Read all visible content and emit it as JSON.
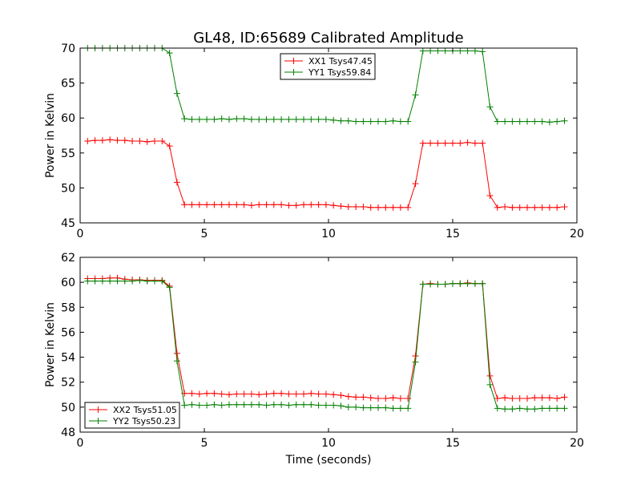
{
  "figure": {
    "title": "GL48, ID:65689 Calibrated Amplitude",
    "xlabel": "Time (seconds)"
  },
  "chart_data": [
    {
      "type": "line",
      "title": "GL48, ID:65689 Calibrated Amplitude",
      "xlabel": "",
      "ylabel": "Power in Kelvin",
      "xlim": [
        0,
        20
      ],
      "ylim": [
        45,
        70
      ],
      "xticks": [
        0,
        5,
        10,
        15,
        20
      ],
      "yticks": [
        45,
        50,
        55,
        60,
        65,
        70
      ],
      "grid": false,
      "legend_position": "upper-center",
      "x": [
        0.3,
        0.6,
        0.9,
        1.2,
        1.5,
        1.8,
        2.1,
        2.4,
        2.7,
        3.0,
        3.3,
        3.6,
        3.9,
        4.2,
        4.5,
        4.8,
        5.1,
        5.4,
        5.7,
        6.0,
        6.3,
        6.6,
        6.9,
        7.2,
        7.5,
        7.8,
        8.1,
        8.4,
        8.7,
        9.0,
        9.3,
        9.6,
        9.9,
        10.2,
        10.5,
        10.8,
        11.1,
        11.4,
        11.7,
        12.0,
        12.3,
        12.6,
        12.9,
        13.2,
        13.5,
        13.8,
        14.1,
        14.4,
        14.7,
        15.0,
        15.3,
        15.6,
        15.9,
        16.2,
        16.5,
        16.8,
        17.1,
        17.4,
        17.7,
        18.0,
        18.3,
        18.6,
        18.9,
        19.2,
        19.5
      ],
      "series": [
        {
          "name": "XX1 Tsys47.45",
          "color": "#ff0000",
          "values": [
            56.7,
            56.8,
            56.8,
            56.9,
            56.8,
            56.8,
            56.7,
            56.7,
            56.6,
            56.7,
            56.7,
            56.0,
            50.8,
            47.6,
            47.6,
            47.6,
            47.6,
            47.6,
            47.6,
            47.6,
            47.6,
            47.6,
            47.5,
            47.6,
            47.6,
            47.6,
            47.6,
            47.5,
            47.5,
            47.6,
            47.6,
            47.6,
            47.6,
            47.5,
            47.4,
            47.3,
            47.3,
            47.3,
            47.2,
            47.2,
            47.2,
            47.2,
            47.2,
            47.2,
            50.6,
            56.4,
            56.4,
            56.4,
            56.4,
            56.4,
            56.4,
            56.5,
            56.4,
            56.4,
            48.9,
            47.2,
            47.3,
            47.2,
            47.2,
            47.2,
            47.2,
            47.2,
            47.2,
            47.2,
            47.3
          ]
        },
        {
          "name": "YY1 Tsys59.84",
          "color": "#008000",
          "values": [
            70.0,
            70.0,
            70.0,
            70.0,
            70.0,
            70.0,
            70.0,
            70.0,
            70.0,
            70.0,
            70.0,
            69.3,
            63.5,
            59.9,
            59.8,
            59.8,
            59.8,
            59.8,
            59.9,
            59.8,
            59.9,
            59.9,
            59.8,
            59.8,
            59.8,
            59.8,
            59.8,
            59.8,
            59.8,
            59.8,
            59.8,
            59.8,
            59.8,
            59.7,
            59.6,
            59.6,
            59.5,
            59.5,
            59.5,
            59.5,
            59.5,
            59.6,
            59.5,
            59.5,
            63.3,
            69.6,
            69.6,
            69.6,
            69.6,
            69.6,
            69.6,
            69.6,
            69.6,
            69.5,
            61.6,
            59.5,
            59.5,
            59.5,
            59.5,
            59.5,
            59.5,
            59.5,
            59.4,
            59.5,
            59.6
          ]
        }
      ]
    },
    {
      "type": "line",
      "title": "",
      "xlabel": "Time (seconds)",
      "ylabel": "Power in Kelvin",
      "xlim": [
        0,
        20
      ],
      "ylim": [
        48,
        62
      ],
      "xticks": [
        0,
        5,
        10,
        15,
        20
      ],
      "yticks": [
        48,
        50,
        52,
        54,
        56,
        58,
        60,
        62
      ],
      "grid": false,
      "legend_position": "lower-left",
      "x": [
        0.3,
        0.6,
        0.9,
        1.2,
        1.5,
        1.8,
        2.1,
        2.4,
        2.7,
        3.0,
        3.3,
        3.6,
        3.9,
        4.2,
        4.5,
        4.8,
        5.1,
        5.4,
        5.7,
        6.0,
        6.3,
        6.6,
        6.9,
        7.2,
        7.5,
        7.8,
        8.1,
        8.4,
        8.7,
        9.0,
        9.3,
        9.6,
        9.9,
        10.2,
        10.5,
        10.8,
        11.1,
        11.4,
        11.7,
        12.0,
        12.3,
        12.6,
        12.9,
        13.2,
        13.5,
        13.8,
        14.1,
        14.4,
        14.7,
        15.0,
        15.3,
        15.6,
        15.9,
        16.2,
        16.5,
        16.8,
        17.1,
        17.4,
        17.7,
        18.0,
        18.3,
        18.6,
        18.9,
        19.2,
        19.5
      ],
      "series": [
        {
          "name": "XX2 Tsys51.05",
          "color": "#ff0000",
          "values": [
            60.3,
            60.3,
            60.3,
            60.35,
            60.35,
            60.25,
            60.2,
            60.2,
            60.15,
            60.15,
            60.15,
            59.7,
            54.3,
            51.1,
            51.1,
            51.05,
            51.1,
            51.1,
            51.05,
            51.0,
            51.05,
            51.05,
            51.05,
            51.0,
            51.05,
            51.1,
            51.1,
            51.05,
            51.05,
            51.05,
            51.1,
            51.05,
            51.05,
            51.0,
            50.95,
            50.85,
            50.8,
            50.8,
            50.75,
            50.7,
            50.7,
            50.75,
            50.7,
            50.7,
            54.1,
            59.85,
            59.9,
            59.85,
            59.85,
            59.9,
            59.9,
            59.95,
            59.9,
            59.9,
            52.5,
            50.7,
            50.75,
            50.7,
            50.7,
            50.7,
            50.75,
            50.75,
            50.75,
            50.7,
            50.8
          ]
        },
        {
          "name": "YY2 Tsys50.23",
          "color": "#008000",
          "values": [
            60.1,
            60.1,
            60.1,
            60.1,
            60.1,
            60.1,
            60.1,
            60.15,
            60.1,
            60.1,
            60.1,
            59.6,
            53.7,
            50.15,
            50.2,
            50.15,
            50.15,
            50.2,
            50.15,
            50.2,
            50.2,
            50.2,
            50.2,
            50.2,
            50.15,
            50.2,
            50.2,
            50.15,
            50.2,
            50.2,
            50.2,
            50.15,
            50.15,
            50.15,
            50.1,
            50.0,
            50.0,
            49.95,
            49.95,
            49.95,
            49.95,
            49.9,
            49.9,
            49.9,
            53.6,
            59.85,
            59.85,
            59.85,
            59.85,
            59.9,
            59.9,
            59.9,
            59.9,
            59.9,
            51.8,
            49.9,
            49.85,
            49.85,
            49.9,
            49.85,
            49.85,
            49.9,
            49.9,
            49.9,
            49.9
          ]
        }
      ]
    }
  ]
}
